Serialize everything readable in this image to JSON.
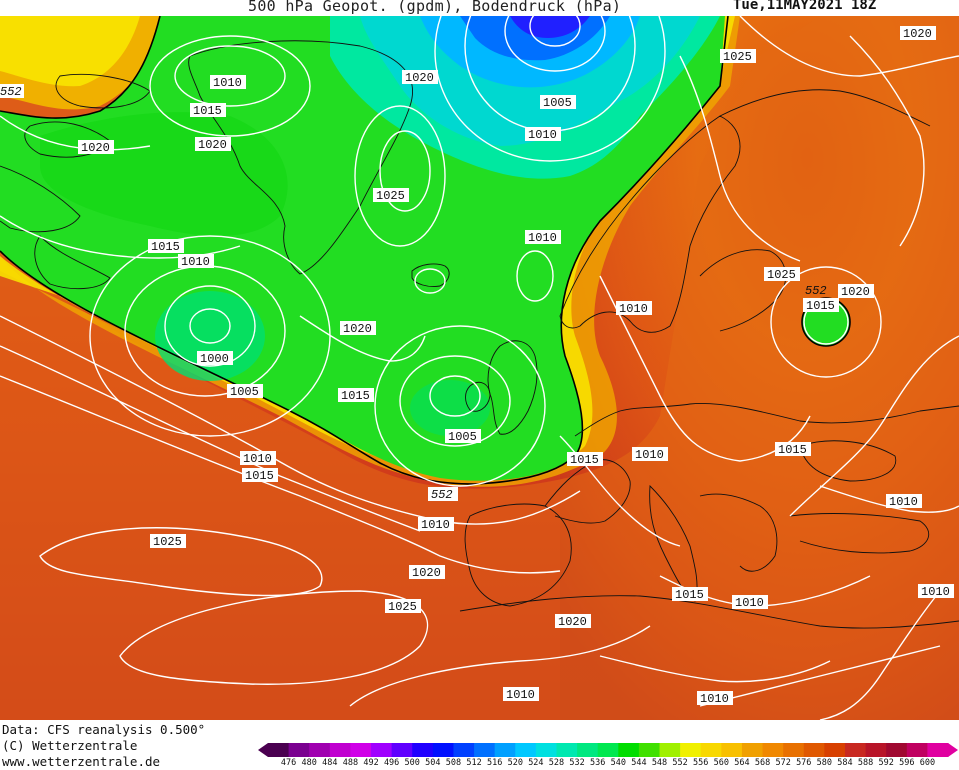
{
  "header": {
    "title": "500 hPa Geopot. (gpdm), Bodendruck (hPa)",
    "valid_time": "Tue,11MAY2021 18Z"
  },
  "footer": {
    "data_source": "Data: CFS reanalysis 0.500°",
    "copyright": "(C) Wetterzentrale",
    "website": "www.wetterzentrale.de"
  },
  "colorbar": {
    "levels": [
      "476",
      "480",
      "484",
      "488",
      "492",
      "496",
      "500",
      "504",
      "508",
      "512",
      "516",
      "520",
      "524",
      "528",
      "532",
      "536",
      "540",
      "544",
      "548",
      "552",
      "556",
      "560",
      "564",
      "568",
      "572",
      "576",
      "580",
      "584",
      "588",
      "592",
      "596",
      "600"
    ],
    "colors": [
      "#4a0050",
      "#7a0090",
      "#a000b0",
      "#c000d0",
      "#d000e8",
      "#a000ff",
      "#6000ff",
      "#2000ff",
      "#0010ff",
      "#0040ff",
      "#0070ff",
      "#00a0ff",
      "#00c8ff",
      "#00e0e0",
      "#00e8b0",
      "#00e880",
      "#00e850",
      "#00dd00",
      "#40e000",
      "#a0f000",
      "#f0f000",
      "#f8d800",
      "#f8c000",
      "#f0a000",
      "#f08800",
      "#e87000",
      "#e05800",
      "#d84000",
      "#c82820",
      "#b81428",
      "#a00830",
      "#c00060",
      "#e000a0"
    ]
  },
  "map": {
    "contour_labels": [
      "552",
      "1010",
      "1015",
      "1020",
      "1020",
      "1010",
      "1020",
      "1005",
      "1010",
      "1025",
      "1025",
      "1020",
      "1015",
      "1010",
      "1000",
      "1005",
      "1020",
      "1015",
      "1010",
      "1015",
      "1010",
      "1005",
      "1010",
      "1015",
      "552",
      "1020",
      "1025",
      "1025",
      "1010",
      "1020",
      "1015",
      "1010",
      "1015",
      "1010",
      "1010",
      "1020",
      "1025",
      "1010",
      "1010",
      "1025",
      "552",
      "1015",
      "1020",
      "1010",
      "1010"
    ],
    "height_label": "552"
  }
}
